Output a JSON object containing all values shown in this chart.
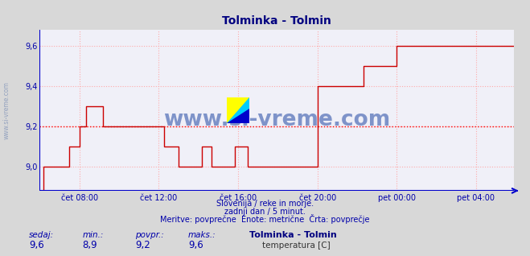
{
  "title": "Tolminka - Tolmin",
  "title_color": "#000080",
  "bg_color": "#d8d8d8",
  "plot_bg_color": "#f0f0f8",
  "grid_color": "#ffaaaa",
  "avg_value": 9.2,
  "avg_line_color": "#ff0000",
  "line_color": "#cc0000",
  "axis_color": "#0000cc",
  "text_color": "#0000aa",
  "yticks": [
    9.0,
    9.2,
    9.4,
    9.6
  ],
  "ytick_labels": [
    "9,0",
    "9,2",
    "9,4",
    "9,6"
  ],
  "xtick_labels": [
    "čet 08:00",
    "čet 12:00",
    "čet 16:00",
    "čet 20:00",
    "pet 00:00",
    "pet 04:00"
  ],
  "ymin": 8.88,
  "ymax": 9.68,
  "footer_line1": "Slovenija / reke in morje.",
  "footer_line2": "zadnji dan / 5 minut.",
  "footer_line3": "Meritve: povprečne  Enote: metrične  Črta: povprečje",
  "legend_sedaj_label": "sedaj:",
  "legend_min_label": "min.:",
  "legend_povpr_label": "povpr.:",
  "legend_maks_label": "maks.:",
  "legend_sedaj_val": "9,6",
  "legend_min_val": "8,9",
  "legend_povpr_val": "9,2",
  "legend_maks_val": "9,6",
  "legend_name": "Tolminka - Tolmin",
  "legend_series": "temperatura [C]",
  "watermark": "www.si-vreme.com",
  "watermark_color": "#3355aa",
  "side_watermark": "www.si-vreme.com",
  "side_watermark_color": "#8899bb",
  "num_points": 288
}
